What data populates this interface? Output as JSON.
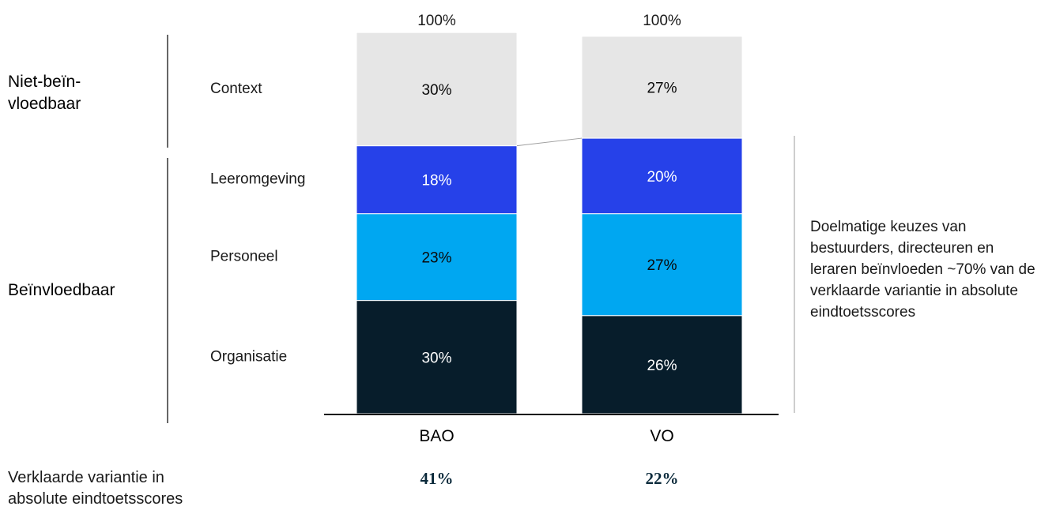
{
  "chart_data": {
    "type": "bar",
    "stacked": true,
    "categories": [
      "BAO",
      "VO"
    ],
    "totals": [
      "100%",
      "100%"
    ],
    "series": [
      {
        "name": "Organisatie",
        "values": [
          30,
          26
        ],
        "color": "#071d2b",
        "text_color": "#ffffff"
      },
      {
        "name": "Personeel",
        "values": [
          23,
          27
        ],
        "color": "#00a7f1",
        "text_color": "#0a0a0a"
      },
      {
        "name": "Leeromgeving",
        "values": [
          18,
          20
        ],
        "color": "#2641e9",
        "text_color": "#ffffff"
      },
      {
        "name": "Context",
        "values": [
          30,
          27
        ],
        "color": "#e6e6e6",
        "text_color": "#0a0a0a"
      }
    ],
    "value_suffix": "%",
    "groups": {
      "not_influenceable": "Niet-beïn-\nvloedbaar",
      "influenceable": "Beïnvloedbaar"
    },
    "explained_variance": {
      "label": "Verklaarde variantie in absolute eindtoetsscores",
      "values": [
        "41%",
        "22%"
      ]
    },
    "annotation": "Doelmatige keuzes van bestuurders, directeuren en leraren beïnvloeden ~70% van de verklaarde variantie in absolute eindtoetsscores"
  }
}
